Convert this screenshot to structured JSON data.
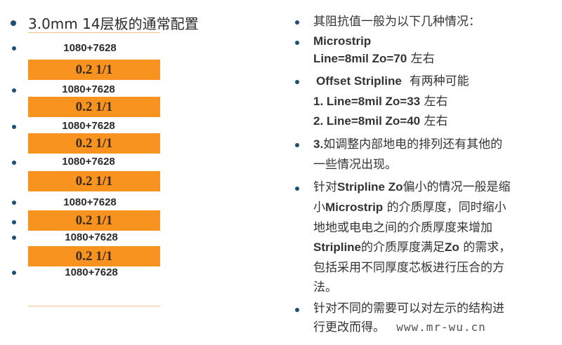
{
  "left": {
    "title": "3.0mm 14层板的通常配置",
    "stack": [
      {
        "label": "1080+7628"
      },
      {
        "core": "0.2 1/1"
      },
      {
        "label": "1080+7628"
      },
      {
        "core": "0.2 1/1"
      },
      {
        "label": "1080+7628"
      },
      {
        "core": "0.2 1/1"
      },
      {
        "label": "1080+7628"
      },
      {
        "core": "0.2 1/1"
      },
      {
        "label": "1080+7628"
      },
      {
        "core": "0.2 1/1"
      },
      {
        "label": "1080+7628"
      },
      {
        "core": "0.2 1/1"
      },
      {
        "label": "1080+7628"
      }
    ]
  },
  "right": {
    "intro": "其阻抗值一般为以下几种情况：",
    "microstrip_title": "Microstrip",
    "microstrip_line": "Line=8mil  Zo=70",
    "microstrip_suffix": "左右",
    "offset_title": "Offset Stripline",
    "offset_suffix": "有两种可能",
    "offset_case1": "1. Line=8mil  Zo=33",
    "offset_case1_suffix": "左右",
    "offset_case2": "2. Line=8mil  Zo=40",
    "offset_case2_suffix": "左右",
    "item3_num": "3.",
    "item3_line1": "如调整内部地电的排列还有其他的",
    "item3_line2": "一些情况出现。",
    "p4_l1a": "针对",
    "p4_l1b": "Stripline Zo",
    "p4_l1c": "偏小的情况一般是缩",
    "p4_l2a": "小",
    "p4_l2b": "Microstrip",
    "p4_l2c": " 的介质厚度，同时缩小",
    "p4_l3": "地地或电电之间的介质厚度来增加",
    "p4_l4a": "Stripline",
    "p4_l4b": "的介质厚度满足",
    "p4_l4c": "Zo",
    "p4_l4d": " 的需求，",
    "p4_l5": "包括采用不同厚度芯板进行压合的方",
    "p4_l6": "法。",
    "p5_l1": "针对不同的需要可以对左示的结构进",
    "p5_l2": "行更改而得。",
    "watermark": "www.mr-wu.cn"
  },
  "colors": {
    "core_fill": "#f7931e",
    "bullet": "#1f4e79",
    "rule": "#f2c28a"
  }
}
